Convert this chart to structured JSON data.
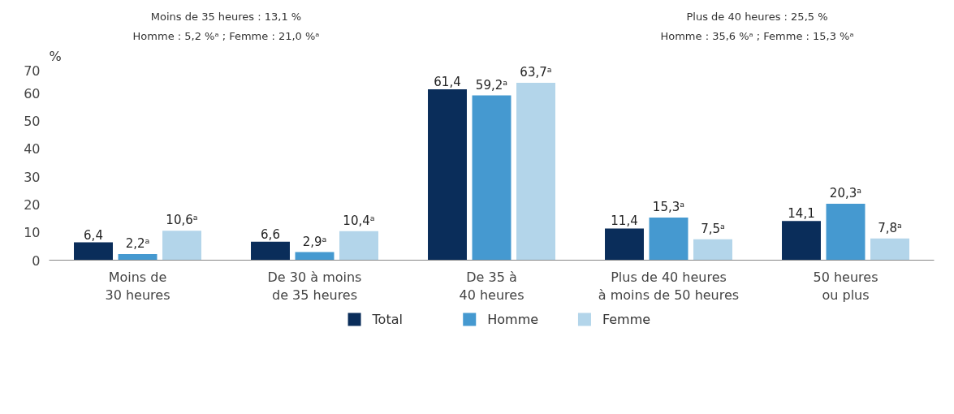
{
  "chart_data": {
    "type": "bar",
    "ylabel": "%",
    "categories": [
      "Moins de\n30 heures",
      "De 30 à moins\nde 35 heures",
      "De 35 à\n40 heures",
      "Plus de 40 heures\nà moins de 50 heures",
      "50 heures\nou plus"
    ],
    "series": [
      {
        "name": "Total",
        "color": "#0a2d5a",
        "values": [
          6.4,
          6.6,
          61.4,
          11.4,
          14.1
        ],
        "value_labels": [
          "6,4",
          "6,6",
          "61,4",
          "11,4",
          "14,1"
        ]
      },
      {
        "name": "Homme",
        "color": "#4599d0",
        "values": [
          2.2,
          2.9,
          59.2,
          15.3,
          20.3
        ],
        "value_labels": [
          "2,2ᵃ",
          "2,9ᵃ",
          "59,2ᵃ",
          "15,3ᵃ",
          "20,3ᵃ"
        ]
      },
      {
        "name": "Femme",
        "color": "#b3d5ea",
        "values": [
          10.6,
          10.4,
          63.7,
          7.5,
          7.8
        ],
        "value_labels": [
          "10,6ᵃ",
          "10,4ᵃ",
          "63,7ᵃ",
          "7,5ᵃ",
          "7,8ᵃ"
        ]
      }
    ],
    "ylim": [
      0,
      70
    ],
    "yticks": [
      0,
      10,
      20,
      30,
      40,
      50,
      60,
      70
    ],
    "grid": false,
    "legend": "bottom",
    "annotations": [
      "Moins de 35 heures : 13,1 %",
      "Homme : 5,2 %ᵃ ; Femme : 21,0 %ᵃ",
      "Plus de 40 heures : 25,5 %",
      "Homme : 35,6 %ᵃ ; Femme : 15,3 %ᵃ"
    ]
  }
}
